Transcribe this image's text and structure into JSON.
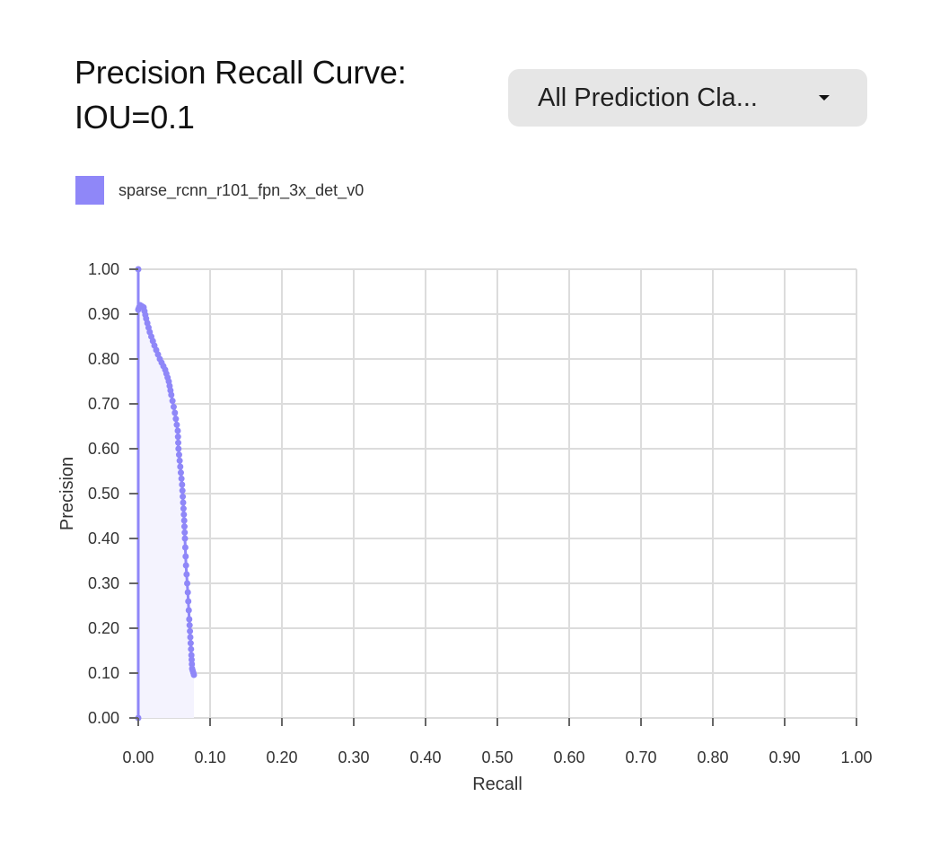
{
  "header": {
    "title_line1": "Precision Recall Curve:",
    "title_line2": "IOU=0.1",
    "dropdown": {
      "selected": "All Prediction Cla...",
      "icon": "caret-down-icon"
    }
  },
  "legend": {
    "items": [
      {
        "label": "sparse_rcnn_r101_fpn_3x_det_v0",
        "color": "#8f87f8"
      }
    ]
  },
  "colors": {
    "series": "#8f87f8",
    "fill": "#f4f3fe",
    "grid": "#dcdcdc",
    "tick": "#666666"
  },
  "chart_data": {
    "type": "line",
    "title": "Precision Recall Curve: IOU=0.1",
    "xlabel": "Recall",
    "ylabel": "Precision",
    "xlim": [
      0,
      1
    ],
    "ylim": [
      0,
      1
    ],
    "grid": true,
    "legend_position": "top-left",
    "x_ticks": [
      "0.00",
      "0.10",
      "0.20",
      "0.30",
      "0.40",
      "0.50",
      "0.60",
      "0.70",
      "0.80",
      "0.90",
      "1.00"
    ],
    "y_ticks": [
      "0.00",
      "0.10",
      "0.20",
      "0.30",
      "0.40",
      "0.50",
      "0.60",
      "0.70",
      "0.80",
      "0.90",
      "1.00"
    ],
    "series": [
      {
        "name": "sparse_rcnn_r101_fpn_3x_det_v0",
        "area_fill": true,
        "points": [
          [
            0.0,
            0.0
          ],
          [
            0.0,
            1.0
          ],
          [
            0.0,
            0.91
          ],
          [
            0.0025,
            0.92
          ],
          [
            0.0075,
            0.915
          ],
          [
            0.011,
            0.89
          ],
          [
            0.016,
            0.86
          ],
          [
            0.0225,
            0.83
          ],
          [
            0.03,
            0.8
          ],
          [
            0.0375,
            0.776
          ],
          [
            0.0425,
            0.75
          ],
          [
            0.046,
            0.72
          ],
          [
            0.051,
            0.68
          ],
          [
            0.055,
            0.64
          ],
          [
            0.056,
            0.6
          ],
          [
            0.0585,
            0.56
          ],
          [
            0.061,
            0.52
          ],
          [
            0.0625,
            0.48
          ],
          [
            0.064,
            0.44
          ],
          [
            0.065,
            0.4
          ],
          [
            0.0665,
            0.34
          ],
          [
            0.069,
            0.28
          ],
          [
            0.071,
            0.22
          ],
          [
            0.0725,
            0.18
          ],
          [
            0.074,
            0.14
          ],
          [
            0.075,
            0.11
          ],
          [
            0.0775,
            0.096
          ]
        ]
      }
    ]
  }
}
